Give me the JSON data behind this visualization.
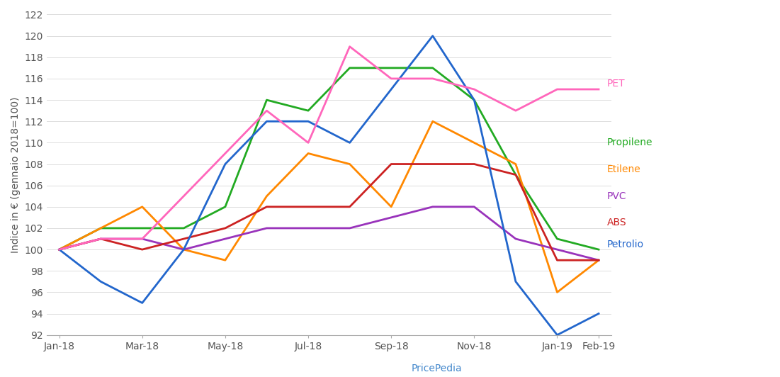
{
  "ylabel": "Indice in € (gennaio 2018=100)",
  "xlabel_bottom": "PricePedia",
  "ylim": [
    92,
    122
  ],
  "yticks": [
    92,
    94,
    96,
    98,
    100,
    102,
    104,
    106,
    108,
    110,
    112,
    114,
    116,
    118,
    120,
    122
  ],
  "n_points": 14,
  "x_tick_positions": [
    0,
    2,
    4,
    6,
    8,
    10,
    12,
    13
  ],
  "x_tick_labels": [
    "Jan-18",
    "Mar-18",
    "May-18",
    "Jul-18",
    "Sep-18",
    "Nov-18",
    "Jan-19",
    "Feb-19"
  ],
  "series": {
    "Propilene": {
      "color": "#22aa22",
      "data": [
        100,
        102,
        102,
        102,
        104,
        114,
        113,
        117,
        117,
        117,
        114,
        107,
        101,
        100
      ]
    },
    "Etilene": {
      "color": "#ff8800",
      "data": [
        100,
        102,
        104,
        100,
        99,
        105,
        109,
        108,
        104,
        112,
        110,
        108,
        96,
        99
      ]
    },
    "PVC": {
      "color": "#9933bb",
      "data": [
        100,
        101,
        101,
        100,
        101,
        102,
        102,
        102,
        103,
        104,
        104,
        101,
        100,
        99
      ]
    },
    "ABS": {
      "color": "#cc2222",
      "data": [
        100,
        101,
        100,
        101,
        102,
        104,
        104,
        104,
        108,
        108,
        108,
        107,
        99,
        99
      ]
    },
    "Petrolio": {
      "color": "#2266cc",
      "data": [
        100,
        97,
        95,
        100,
        108,
        112,
        112,
        110,
        115,
        120,
        114,
        97,
        92,
        94
      ]
    },
    "PET": {
      "color": "#ff66bb",
      "data": [
        100,
        101,
        101,
        105,
        109,
        113,
        110,
        119,
        116,
        116,
        115,
        113,
        115,
        115
      ]
    }
  },
  "legend_order": [
    "PET",
    "Propilene",
    "Etilene",
    "PVC",
    "ABS",
    "Petrolio"
  ],
  "legend_colors": {
    "PET": "#ff66bb",
    "Propilene": "#22aa22",
    "Etilene": "#ff8800",
    "PVC": "#9933bb",
    "ABS": "#cc2222",
    "Petrolio": "#2266cc"
  },
  "background_color": "#ffffff",
  "linewidth": 2.0
}
